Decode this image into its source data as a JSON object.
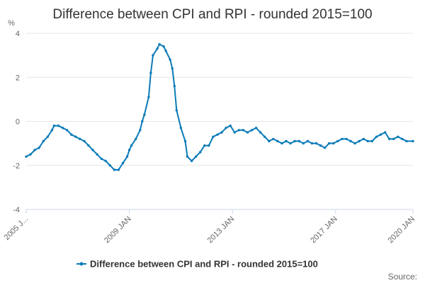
{
  "chart_data": {
    "type": "line",
    "title": "Difference between CPI and RPI - rounded 2015=100",
    "ylabel": "%",
    "xlabel": "",
    "ylim": [
      -4,
      4
    ],
    "yticks": [
      -4,
      -2,
      0,
      2,
      4
    ],
    "x_range": [
      "2005-01",
      "2020-01"
    ],
    "x_tick_labels": [
      {
        "date": "2005-01",
        "label": "2005 J..."
      },
      {
        "date": "2009-01",
        "label": "2009 JAN"
      },
      {
        "date": "2013-01",
        "label": "2013 JAN"
      },
      {
        "date": "2017-01",
        "label": "2017 JAN"
      },
      {
        "date": "2020-01",
        "label": "2020 JAN"
      }
    ],
    "grid": "horizontal",
    "legend": "bottom",
    "series": [
      {
        "name": "Difference between CPI and RPI - rounded 2015=100",
        "color": "#0b7bb8",
        "points": [
          [
            "2005-01",
            -1.6
          ],
          [
            "2005-03",
            -1.5
          ],
          [
            "2005-05",
            -1.3
          ],
          [
            "2005-07",
            -1.2
          ],
          [
            "2005-09",
            -0.9
          ],
          [
            "2005-11",
            -0.7
          ],
          [
            "2006-01",
            -0.4
          ],
          [
            "2006-02",
            -0.2
          ],
          [
            "2006-04",
            -0.2
          ],
          [
            "2006-06",
            -0.3
          ],
          [
            "2006-08",
            -0.4
          ],
          [
            "2006-10",
            -0.6
          ],
          [
            "2006-12",
            -0.7
          ],
          [
            "2007-02",
            -0.8
          ],
          [
            "2007-04",
            -0.9
          ],
          [
            "2007-06",
            -1.1
          ],
          [
            "2007-08",
            -1.3
          ],
          [
            "2007-10",
            -1.5
          ],
          [
            "2007-12",
            -1.7
          ],
          [
            "2008-02",
            -1.8
          ],
          [
            "2008-04",
            -2.0
          ],
          [
            "2008-06",
            -2.2
          ],
          [
            "2008-08",
            -2.2
          ],
          [
            "2008-10",
            -1.9
          ],
          [
            "2008-12",
            -1.6
          ],
          [
            "2009-01",
            -1.3
          ],
          [
            "2009-02",
            -1.1
          ],
          [
            "2009-04",
            -0.8
          ],
          [
            "2009-06",
            -0.4
          ],
          [
            "2009-07",
            0.0
          ],
          [
            "2009-08",
            0.3
          ],
          [
            "2009-10",
            1.1
          ],
          [
            "2009-11",
            2.2
          ],
          [
            "2009-12",
            3.0
          ],
          [
            "2010-02",
            3.3
          ],
          [
            "2010-03",
            3.5
          ],
          [
            "2010-05",
            3.4
          ],
          [
            "2010-06",
            3.2
          ],
          [
            "2010-08",
            2.8
          ],
          [
            "2010-09",
            2.4
          ],
          [
            "2010-10",
            1.6
          ],
          [
            "2010-11",
            0.5
          ],
          [
            "2011-01",
            -0.3
          ],
          [
            "2011-03",
            -0.9
          ],
          [
            "2011-04",
            -1.6
          ],
          [
            "2011-06",
            -1.8
          ],
          [
            "2011-08",
            -1.6
          ],
          [
            "2011-10",
            -1.4
          ],
          [
            "2011-12",
            -1.1
          ],
          [
            "2012-02",
            -1.1
          ],
          [
            "2012-04",
            -0.7
          ],
          [
            "2012-06",
            -0.6
          ],
          [
            "2012-08",
            -0.5
          ],
          [
            "2012-10",
            -0.3
          ],
          [
            "2012-12",
            -0.2
          ],
          [
            "2013-02",
            -0.5
          ],
          [
            "2013-04",
            -0.4
          ],
          [
            "2013-06",
            -0.4
          ],
          [
            "2013-08",
            -0.5
          ],
          [
            "2013-10",
            -0.4
          ],
          [
            "2013-12",
            -0.3
          ],
          [
            "2014-02",
            -0.5
          ],
          [
            "2014-04",
            -0.7
          ],
          [
            "2014-06",
            -0.9
          ],
          [
            "2014-08",
            -0.8
          ],
          [
            "2014-10",
            -0.9
          ],
          [
            "2014-12",
            -1.0
          ],
          [
            "2015-02",
            -0.9
          ],
          [
            "2015-04",
            -1.0
          ],
          [
            "2015-06",
            -0.9
          ],
          [
            "2015-08",
            -0.9
          ],
          [
            "2015-10",
            -1.0
          ],
          [
            "2015-12",
            -0.9
          ],
          [
            "2016-02",
            -1.0
          ],
          [
            "2016-04",
            -1.0
          ],
          [
            "2016-06",
            -1.1
          ],
          [
            "2016-08",
            -1.2
          ],
          [
            "2016-10",
            -1.0
          ],
          [
            "2016-12",
            -1.0
          ],
          [
            "2017-02",
            -0.9
          ],
          [
            "2017-04",
            -0.8
          ],
          [
            "2017-06",
            -0.8
          ],
          [
            "2017-08",
            -0.9
          ],
          [
            "2017-10",
            -1.0
          ],
          [
            "2017-12",
            -0.9
          ],
          [
            "2018-02",
            -0.8
          ],
          [
            "2018-04",
            -0.9
          ],
          [
            "2018-06",
            -0.9
          ],
          [
            "2018-08",
            -0.7
          ],
          [
            "2018-10",
            -0.6
          ],
          [
            "2018-12",
            -0.5
          ],
          [
            "2019-02",
            -0.8
          ],
          [
            "2019-04",
            -0.8
          ],
          [
            "2019-06",
            -0.7
          ],
          [
            "2019-08",
            -0.8
          ],
          [
            "2019-10",
            -0.9
          ],
          [
            "2020-01",
            -0.9
          ]
        ]
      }
    ],
    "credit": "Source:"
  }
}
